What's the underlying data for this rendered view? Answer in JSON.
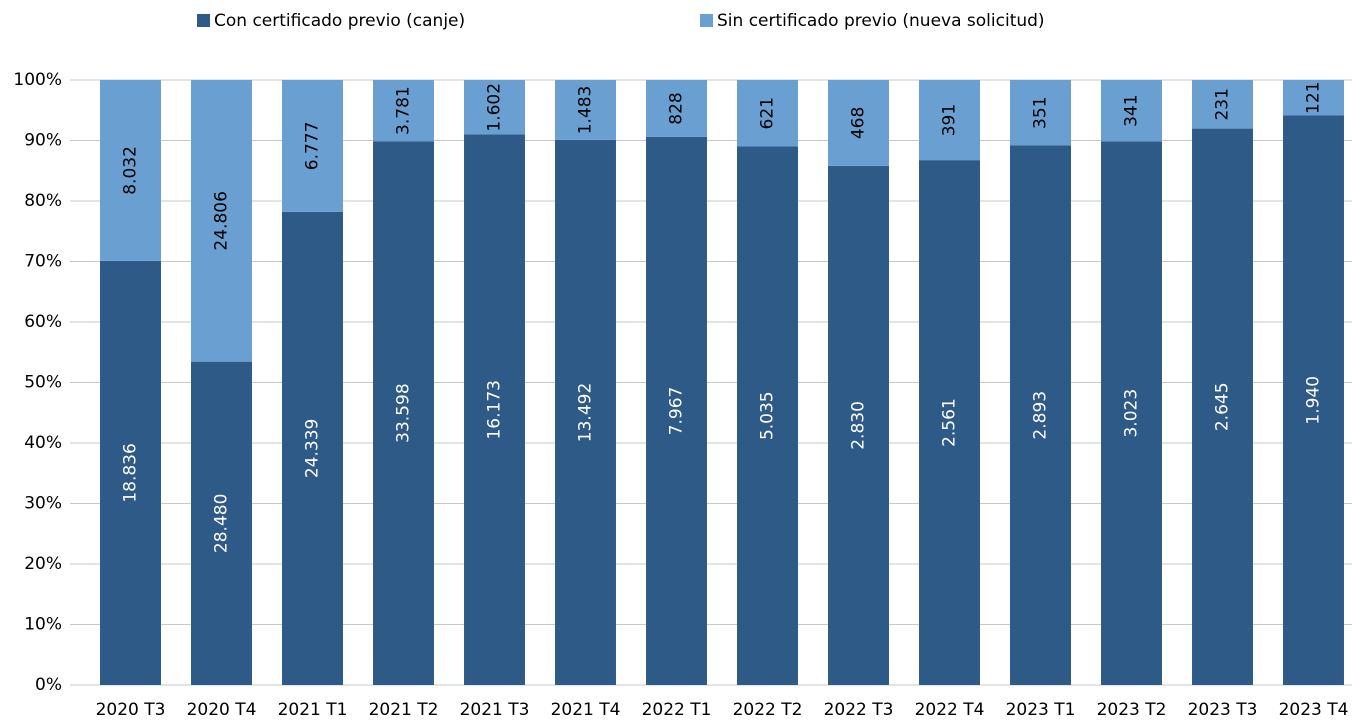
{
  "chart_data": {
    "type": "bar",
    "stack": "percent",
    "categories": [
      "2020 T3",
      "2020 T4",
      "2021 T1",
      "2021 T2",
      "2021 T3",
      "2021 T4",
      "2022 T1",
      "2022 T2",
      "2022 T3",
      "2022 T4",
      "2023 T1",
      "2023 T2",
      "2023 T3",
      "2023 T4"
    ],
    "series": [
      {
        "name": "Con certificado previo (canje)",
        "color": "#2e5a87",
        "values": [
          18836,
          28480,
          24339,
          33598,
          16173,
          13492,
          7967,
          5035,
          2830,
          2561,
          2893,
          3023,
          2645,
          1940
        ],
        "value_labels": [
          "18.836",
          "28.480",
          "24.339",
          "33.598",
          "16.173",
          "13.492",
          "7.967",
          "5.035",
          "2.830",
          "2.561",
          "2.893",
          "3.023",
          "2.645",
          "1.940"
        ]
      },
      {
        "name": "Sin certificado previo (nueva solicitud)",
        "color": "#6a9fd2",
        "values": [
          8032,
          24806,
          6777,
          3781,
          1602,
          1483,
          828,
          621,
          468,
          391,
          351,
          341,
          231,
          121
        ],
        "value_labels": [
          "8.032",
          "24.806",
          "6.777",
          "3.781",
          "1.602",
          "1.483",
          "828",
          "621",
          "468",
          "391",
          "351",
          "341",
          "231",
          "121"
        ]
      }
    ],
    "ylim": [
      0,
      100
    ],
    "yticks": [
      {
        "value": 0,
        "label": "0%"
      },
      {
        "value": 10,
        "label": "10%"
      },
      {
        "value": 20,
        "label": "20%"
      },
      {
        "value": 30,
        "label": "30%"
      },
      {
        "value": 40,
        "label": "40%"
      },
      {
        "value": 50,
        "label": "50%"
      },
      {
        "value": 60,
        "label": "60%"
      },
      {
        "value": 70,
        "label": "70%"
      },
      {
        "value": 80,
        "label": "80%"
      },
      {
        "value": 90,
        "label": "90%"
      },
      {
        "value": 100,
        "label": "100%"
      }
    ],
    "grid": true,
    "legend": "top"
  }
}
